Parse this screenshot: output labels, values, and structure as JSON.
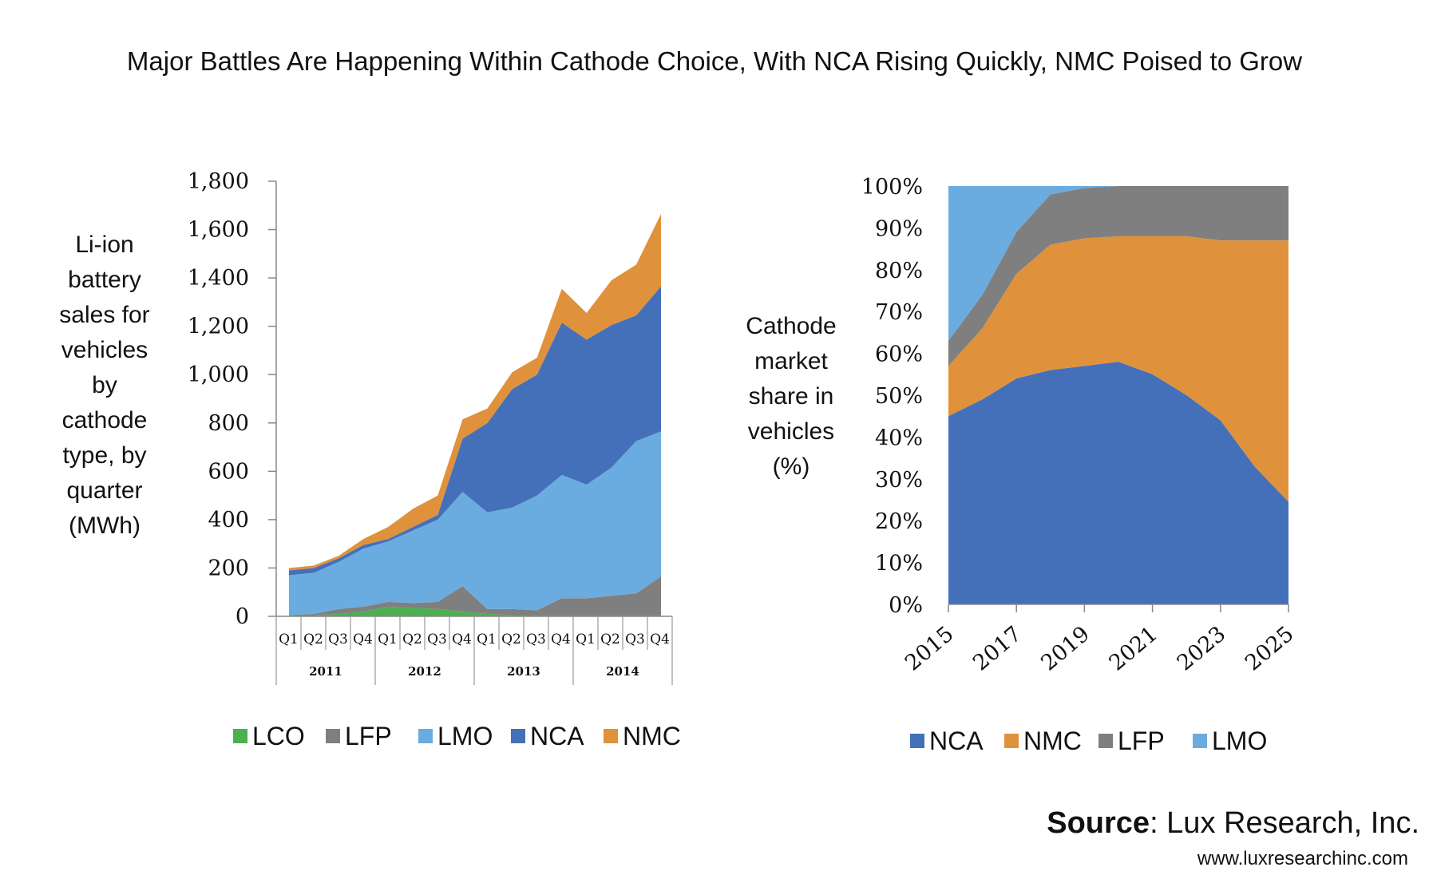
{
  "title": "Major Battles Are Happening Within Cathode Choice, With NCA Rising Quickly, NMC Poised to Grow",
  "source": {
    "label": "Source",
    "text": ": Lux Research, Inc.",
    "url": "www.luxresearchinc.com"
  },
  "colors": {
    "LCO": "#4CAF50",
    "LFP": "#7F7F7F",
    "LMO": "#6AACE0",
    "NCA": "#4470BA",
    "NMC": "#E0913C"
  },
  "chart_data": [
    {
      "type": "area",
      "stacked": true,
      "ylabel": [
        "Li-ion",
        "battery",
        "sales for",
        "vehicles",
        "by",
        "cathode",
        "type, by",
        "quarter",
        "(MWh)"
      ],
      "ylim": [
        0,
        1800
      ],
      "yticks": [
        0,
        200,
        400,
        600,
        800,
        1000,
        1200,
        1400,
        1600,
        1800
      ],
      "ytick_labels": [
        "0",
        "200",
        "400",
        "600",
        "800",
        "1,000",
        "1,200",
        "1,400",
        "1,600",
        "1,800"
      ],
      "quarters": [
        "Q1",
        "Q2",
        "Q3",
        "Q4",
        "Q1",
        "Q2",
        "Q3",
        "Q4",
        "Q1",
        "Q2",
        "Q3",
        "Q4",
        "Q1",
        "Q2",
        "Q3",
        "Q4"
      ],
      "years": [
        "2011",
        "2012",
        "2013",
        "2014"
      ],
      "series": [
        {
          "name": "LCO",
          "values": [
            5,
            5,
            10,
            20,
            40,
            35,
            30,
            20,
            10,
            5,
            5,
            5,
            5,
            5,
            5,
            5
          ]
        },
        {
          "name": "LFP",
          "values": [
            0,
            5,
            20,
            20,
            20,
            20,
            30,
            105,
            20,
            25,
            20,
            70,
            70,
            80,
            90,
            160
          ]
        },
        {
          "name": "LMO",
          "values": [
            165,
            170,
            195,
            240,
            250,
            300,
            340,
            390,
            400,
            420,
            475,
            510,
            470,
            530,
            630,
            600
          ]
        },
        {
          "name": "NCA",
          "values": [
            20,
            20,
            15,
            15,
            10,
            15,
            20,
            220,
            370,
            490,
            500,
            630,
            600,
            590,
            520,
            600
          ]
        },
        {
          "name": "NMC",
          "values": [
            10,
            10,
            10,
            25,
            50,
            75,
            80,
            80,
            60,
            70,
            70,
            140,
            110,
            185,
            210,
            300
          ]
        }
      ]
    },
    {
      "type": "area",
      "stacked": true,
      "percent": true,
      "ylabel": [
        "Cathode",
        "market",
        "share in",
        "vehicles",
        "(%)"
      ],
      "ylim": [
        0,
        100
      ],
      "yticks": [
        0,
        10,
        20,
        30,
        40,
        50,
        60,
        70,
        80,
        90,
        100
      ],
      "ytick_labels": [
        "0%",
        "10%",
        "20%",
        "30%",
        "40%",
        "50%",
        "60%",
        "70%",
        "80%",
        "90%",
        "100%"
      ],
      "x": [
        2015,
        2016,
        2017,
        2018,
        2019,
        2020,
        2021,
        2022,
        2023,
        2024,
        2025
      ],
      "xtick_labels": [
        "2015",
        "2017",
        "2019",
        "2021",
        "2023",
        "2025"
      ],
      "series": [
        {
          "name": "NCA",
          "values": [
            45,
            49,
            54,
            56,
            57,
            58,
            55,
            50,
            44,
            33,
            24.5
          ]
        },
        {
          "name": "NMC",
          "values": [
            12,
            17,
            25,
            30,
            30.5,
            30,
            33,
            38,
            43,
            54,
            62.5
          ]
        },
        {
          "name": "LFP",
          "values": [
            6,
            8,
            10,
            12,
            12,
            12,
            12,
            12,
            13,
            13,
            13
          ]
        },
        {
          "name": "LMO",
          "values": [
            37,
            26,
            11,
            2,
            0.5,
            0,
            0,
            0,
            0,
            0,
            0
          ]
        }
      ]
    }
  ]
}
